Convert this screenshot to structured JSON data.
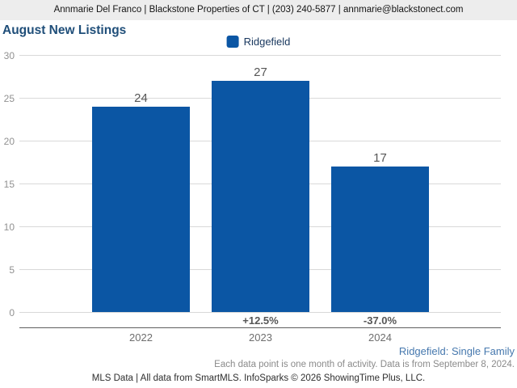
{
  "header": {
    "contact_line": "Annmarie Del Franco | Blackstone Properties of CT | (203) 240-5877 | annmarie@blackstonect.com"
  },
  "chart_data": {
    "type": "bar",
    "title": "August New Listings",
    "legend": [
      {
        "label": "Ridgefield",
        "color": "#0b56a4"
      }
    ],
    "legend_position": "top-center",
    "categories": [
      "2022",
      "2023",
      "2024"
    ],
    "values": [
      24,
      27,
      17
    ],
    "value_labels": [
      "24",
      "27",
      "17"
    ],
    "change_labels": [
      "",
      "+12.5%",
      "-37.0%"
    ],
    "ylabel": "",
    "xlabel": "",
    "ylim": [
      0,
      30
    ],
    "ytick_step": 5,
    "yticks": [
      0,
      5,
      10,
      15,
      20,
      25,
      30
    ],
    "grid": true
  },
  "footnotes": {
    "series_descriptor": "Ridgefield: Single Family",
    "data_note": "Each data point is one month of activity. Data is from September 8, 2024.",
    "attribution": "MLS Data | All data from SmartMLS. InfoSparks © 2026 ShowingTime Plus, LLC."
  },
  "colors": {
    "bar": "#0b56a4",
    "title": "#1f4e79",
    "header_background": "#ededed",
    "series_descriptor_link": "#4678ae"
  }
}
